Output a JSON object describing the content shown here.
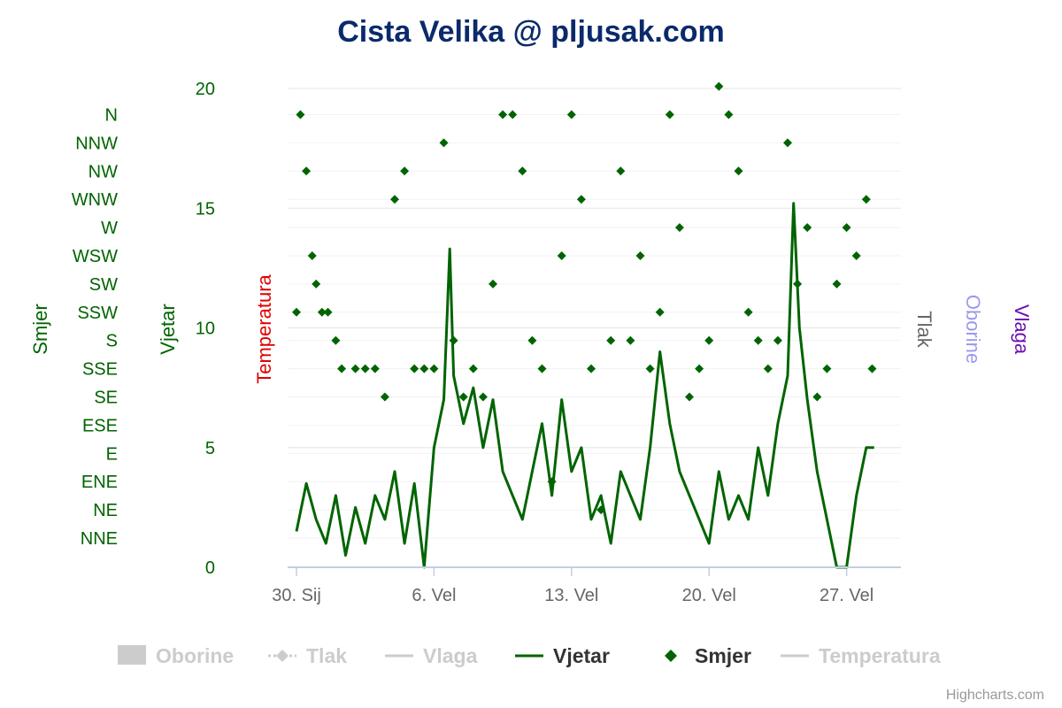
{
  "chart_data": {
    "type": "line",
    "title": "Cista Velika @ pljusak.com",
    "x_ticks": [
      "30. Sij",
      "6. Vel",
      "13. Vel",
      "20. Vel",
      "27. Vel"
    ],
    "x_range": [
      "2013-01-30",
      "2013-03-01"
    ],
    "yaxis_vjetar": {
      "title": "Vjetar",
      "ylim": [
        0,
        20
      ],
      "ticks": [
        "0",
        "5",
        "10",
        "15",
        "20"
      ]
    },
    "yaxis_smjer": {
      "title": "Smjer",
      "categories": [
        "NNE",
        "NE",
        "ENE",
        "E",
        "ESE",
        "SE",
        "SSE",
        "S",
        "SSW",
        "SW",
        "WSW",
        "W",
        "WNW",
        "NW",
        "NNW",
        "N"
      ]
    },
    "other_axes": [
      {
        "title": "Temperatura",
        "color": "#e00000"
      },
      {
        "title": "Tlak",
        "color": "#666666"
      },
      {
        "title": "Oborine",
        "color": "#9999ee"
      },
      {
        "title": "Vlaga",
        "color": "#6a0dad"
      }
    ],
    "series_color": "#006400",
    "grid": true,
    "legend_position": "bottom",
    "legend": [
      {
        "name": "Oborine",
        "symbol": "box",
        "active": false
      },
      {
        "name": "Tlak",
        "symbol": "dash-diamond",
        "active": false
      },
      {
        "name": "Vlaga",
        "symbol": "line",
        "active": false
      },
      {
        "name": "Vjetar",
        "symbol": "line",
        "active": true
      },
      {
        "name": "Smjer",
        "symbol": "diamond",
        "active": true
      },
      {
        "name": "Temperatura",
        "symbol": "line",
        "active": false
      }
    ],
    "series": [
      {
        "name": "Vjetar",
        "type": "line",
        "x_day_offsets": [
          0,
          0.5,
          1,
          1.5,
          2,
          2.5,
          3,
          3.5,
          4,
          4.5,
          5,
          5.5,
          6,
          6.5,
          7,
          7.5,
          7.8,
          8,
          8.5,
          9,
          9.5,
          10,
          10.5,
          11,
          11.5,
          12,
          12.5,
          13,
          13.5,
          14,
          14.5,
          15,
          15.5,
          16,
          16.5,
          17,
          17.5,
          18,
          18.5,
          19,
          19.5,
          20,
          20.5,
          21,
          21.5,
          22,
          22.5,
          23,
          23.5,
          24,
          24.5,
          25,
          25.3,
          25.6,
          26,
          26.5,
          27,
          27.5,
          28,
          28.5,
          29,
          29.4
        ],
        "values": [
          1.5,
          3.5,
          2,
          1,
          3,
          0.5,
          2.5,
          1,
          3,
          2,
          4,
          1,
          3.5,
          0,
          5,
          7,
          13.3,
          8,
          6,
          7.5,
          5,
          7,
          4,
          3,
          2,
          4,
          6,
          3,
          7,
          4,
          5,
          2,
          3,
          1,
          4,
          3,
          2,
          5,
          9,
          6,
          4,
          3,
          2,
          1,
          4,
          2,
          3,
          2,
          5,
          3,
          6,
          8,
          15.2,
          10,
          7,
          4,
          2,
          0,
          0,
          3,
          5,
          5
        ]
      },
      {
        "name": "Smjer",
        "type": "scatter",
        "x_day_offsets": [
          0,
          0.2,
          0.5,
          0.8,
          1,
          1.3,
          1.6,
          2,
          2.3,
          3,
          3.5,
          4,
          4.5,
          5,
          5.5,
          6,
          6.5,
          7,
          7.5,
          8,
          8.5,
          9,
          9.5,
          10,
          10.5,
          11,
          11.5,
          12,
          12.5,
          13,
          13.5,
          14,
          14.5,
          15,
          15.5,
          16,
          16.5,
          17,
          17.5,
          18,
          18.5,
          19,
          19.5,
          20,
          20.5,
          21,
          21.5,
          22,
          22.5,
          23,
          23.5,
          24,
          24.5,
          25,
          25.5,
          26,
          26.5,
          27,
          27.5,
          28,
          28.5,
          29,
          29.3
        ],
        "values": [
          8,
          15,
          13,
          10,
          9,
          8,
          8,
          7,
          6,
          6,
          6,
          6,
          5,
          12,
          13,
          6,
          6,
          6,
          14,
          7,
          5,
          6,
          5,
          9,
          15,
          15,
          13,
          7,
          6,
          2,
          10,
          15,
          12,
          6,
          1,
          7,
          13,
          7,
          10,
          6,
          8,
          15,
          11,
          5,
          6,
          7,
          16,
          15,
          13,
          8,
          7,
          6,
          7,
          14,
          9,
          11,
          5,
          6,
          9,
          11,
          10,
          12,
          6
        ]
      }
    ]
  }
}
